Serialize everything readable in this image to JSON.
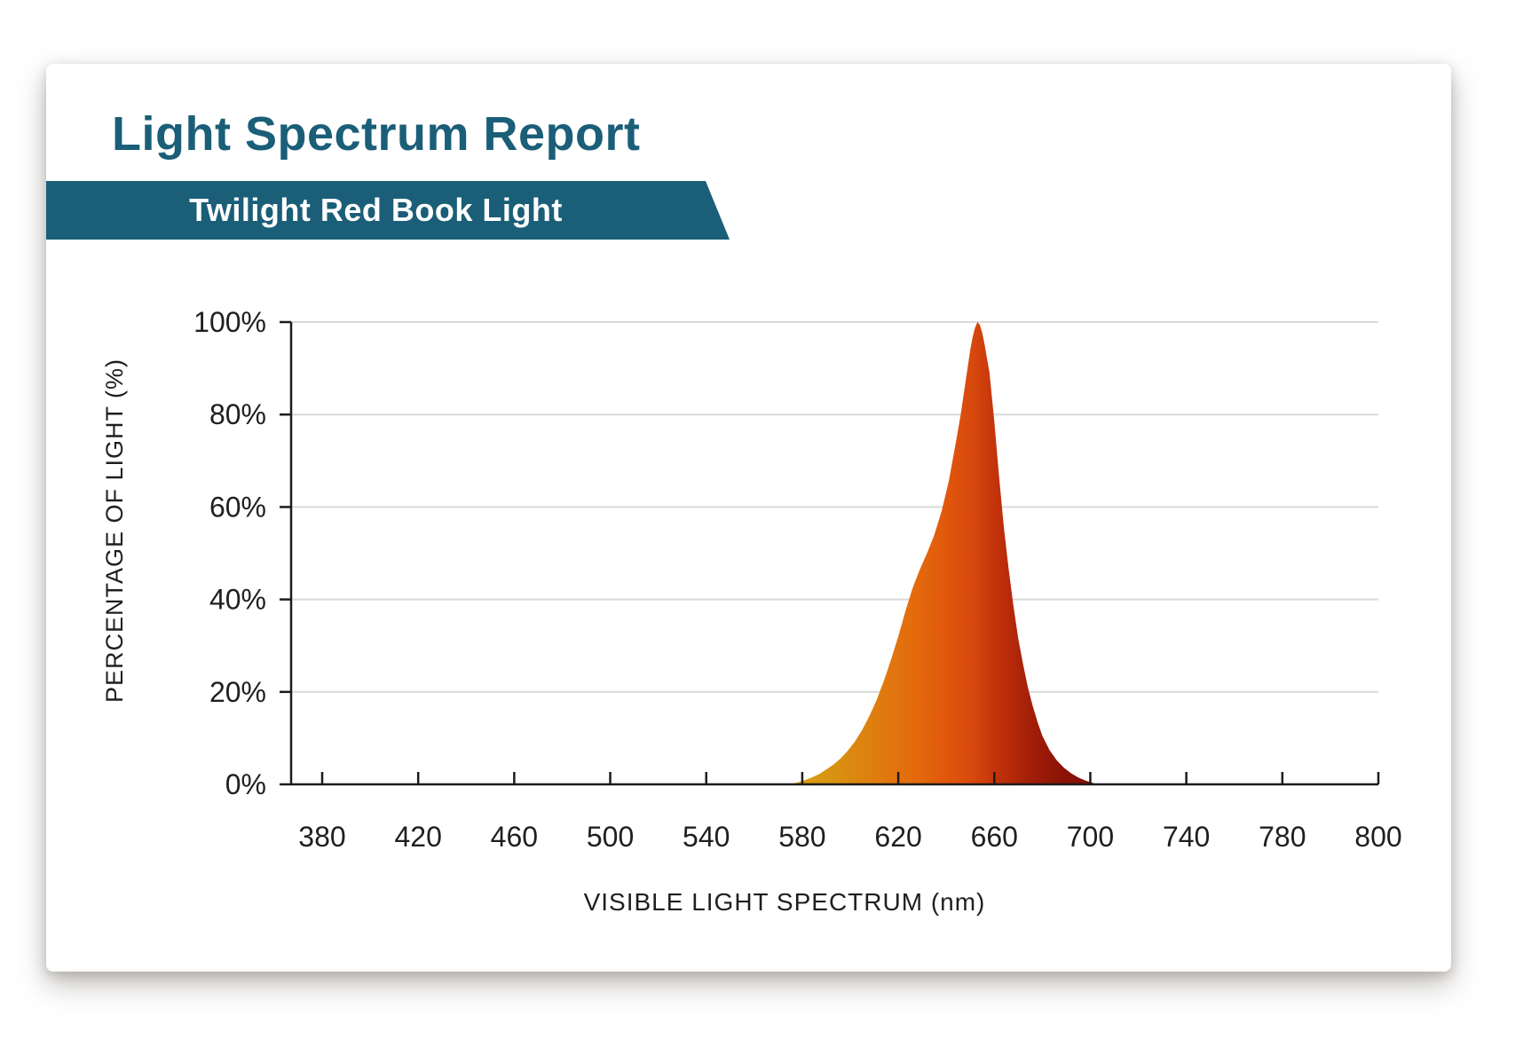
{
  "header": {
    "title": "Light Spectrum Report",
    "subtitle": "Twilight Red Book Light",
    "title_color": "#1a5e78",
    "banner_color": "#1a5e78",
    "banner_text_color": "#ffffff"
  },
  "chart_data": {
    "type": "area",
    "title": "",
    "xlabel": "VISIBLE LIGHT SPECTRUM (nm)",
    "ylabel": "PERCENTAGE OF LIGHT (%)",
    "ylim": [
      0,
      100
    ],
    "grid": "horizontal-only",
    "legend": "none",
    "x_ticks": {
      "values": [
        380,
        420,
        460,
        500,
        540,
        580,
        620,
        660,
        700,
        740,
        780,
        800
      ],
      "labels": [
        "380",
        "420",
        "460",
        "500",
        "540",
        "580",
        "620",
        "660",
        "700",
        "740",
        "780",
        "800"
      ],
      "note": "ticks evenly spaced; last label 800 occupies one full slot"
    },
    "y_ticks": {
      "values": [
        0,
        20,
        40,
        60,
        80,
        100
      ],
      "labels": [
        "0%",
        "20%",
        "40%",
        "60%",
        "80%",
        "100%"
      ]
    },
    "series": [
      {
        "name": "Twilight Red Book Light spectrum",
        "peak_nm": 653,
        "x": [
          575,
          578,
          581,
          584,
          587,
          590,
          593,
          596,
          599,
          602,
          605,
          608,
          611,
          614,
          617,
          620,
          623,
          626,
          629,
          632,
          635,
          638,
          641,
          644,
          646,
          648,
          650,
          651,
          652,
          653,
          654,
          655,
          656,
          658,
          660,
          662,
          664,
          666,
          668,
          670,
          672,
          674,
          676,
          678,
          680,
          683,
          686,
          689,
          692,
          695,
          698,
          701,
          703
        ],
        "y": [
          0,
          0.4,
          0.9,
          1.5,
          2.2,
          3.2,
          4.3,
          5.6,
          7.3,
          9.3,
          11.8,
          14.8,
          18.3,
          22.4,
          27,
          32,
          37.5,
          42.5,
          46.5,
          50,
          54,
          59,
          65.5,
          74,
          80,
          87,
          94,
          96.8,
          98.8,
          100,
          99.4,
          97.6,
          95,
          89,
          78.5,
          66.5,
          55.5,
          46.5,
          38.5,
          31.5,
          26,
          21,
          17,
          13.5,
          10.5,
          7.4,
          5.2,
          3.6,
          2.4,
          1.5,
          0.8,
          0.3,
          0
        ]
      }
    ],
    "fill_gradient": {
      "direction": "horizontal",
      "stops": [
        {
          "offset": 0.0,
          "color": "#d9a414"
        },
        {
          "offset": 0.16,
          "color": "#d98f10"
        },
        {
          "offset": 0.3,
          "color": "#e07a0e"
        },
        {
          "offset": 0.42,
          "color": "#e4680c"
        },
        {
          "offset": 0.52,
          "color": "#e0550d"
        },
        {
          "offset": 0.6,
          "color": "#d6470d"
        },
        {
          "offset": 0.68,
          "color": "#c0300b"
        },
        {
          "offset": 0.78,
          "color": "#a31f08"
        },
        {
          "offset": 0.88,
          "color": "#8c1306"
        },
        {
          "offset": 1.0,
          "color": "#7c0e06"
        }
      ]
    },
    "colors": {
      "axis": "#1c1c1c",
      "gridline": "#d9d9d9",
      "tick_label": "#1f1f1f",
      "axis_label": "#1f1f1f"
    }
  }
}
